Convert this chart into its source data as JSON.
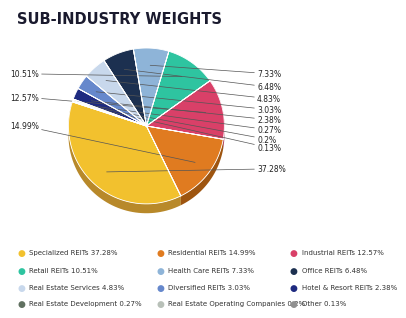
{
  "title": "SUB-INDUSTRY WEIGHTS",
  "slices": [
    {
      "label": "Specialized REITs",
      "value": 37.28,
      "color": "#F2C12E",
      "color3d": "#B8892A"
    },
    {
      "label": "Residential REITs",
      "value": 14.99,
      "color": "#E07B20",
      "color3d": "#9E5510"
    },
    {
      "label": "Industrial REITs",
      "value": 12.57,
      "color": "#D94068",
      "color3d": "#A02048"
    },
    {
      "label": "Retail REITs",
      "value": 10.51,
      "color": "#2EC4A0",
      "color3d": "#1A8870"
    },
    {
      "label": "Health Care REITs",
      "value": 7.33,
      "color": "#8EB4D8",
      "color3d": "#5A80A0"
    },
    {
      "label": "Office REITs",
      "value": 6.48,
      "color": "#1C3050",
      "color3d": "#0A1A30"
    },
    {
      "label": "Real Estate Services",
      "value": 4.83,
      "color": "#C8D8EC",
      "color3d": "#8898AC"
    },
    {
      "label": "Diversified REITs",
      "value": 3.03,
      "color": "#6688CC",
      "color3d": "#4460A0"
    },
    {
      "label": "Hotel & Resort REITs",
      "value": 2.38,
      "color": "#1E2A80",
      "color3d": "#0E1A50"
    },
    {
      "label": "Real Estate Development",
      "value": 0.27,
      "color": "#607060",
      "color3d": "#405040"
    },
    {
      "label": "Real Estate Operating Companies",
      "value": 0.2,
      "color": "#B8C0B8",
      "color3d": "#8090A0"
    },
    {
      "label": "Other",
      "value": 0.13,
      "color": "#909090",
      "color3d": "#606060"
    }
  ],
  "legend_entries": [
    {
      "label": "Specialized REITs 37.28%",
      "color": "#F2C12E"
    },
    {
      "label": "Residential REITs 14.99%",
      "color": "#E07B20"
    },
    {
      "label": "Industrial REITs 12.57%",
      "color": "#D94068"
    },
    {
      "label": "Retail REITs 10.51%",
      "color": "#2EC4A0"
    },
    {
      "label": "Health Care REITs 7.33%",
      "color": "#8EB4D8"
    },
    {
      "label": "Office REITs 6.48%",
      "color": "#1C3050"
    },
    {
      "label": "Real Estate Services 4.83%",
      "color": "#C8D8EC"
    },
    {
      "label": "Diversified REITs 3.03%",
      "color": "#6688CC"
    },
    {
      "label": "Hotel & Resort REITs 2.38%",
      "color": "#1E2A80"
    },
    {
      "label": "Real Estate Development 0.27%",
      "color": "#607060"
    },
    {
      "label": "Real Estate Operating Companies 0.2%",
      "color": "#B8C0B8"
    },
    {
      "label": "Other 0.13%",
      "color": "#909090"
    }
  ],
  "bg_color": "#FFFFFF",
  "title_color": "#1A1A2E",
  "title_fontsize": 10.5,
  "label_fontsize": 5.5,
  "legend_fontsize": 5.0,
  "startangle": 162,
  "depth": 0.12
}
